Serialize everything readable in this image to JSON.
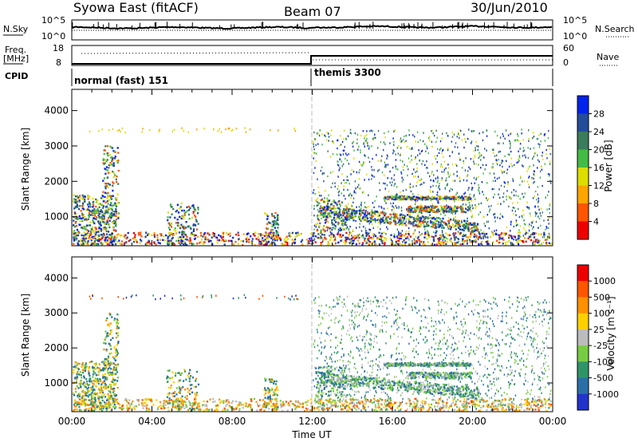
{
  "header": {
    "station": "Syowa East (fitACF)",
    "beam": "Beam 07",
    "date": "30/Jun/2010"
  },
  "strips": {
    "nsky_label": "N.Sky",
    "nsky_ticks": [
      "10^5",
      "10^0"
    ],
    "nsearch_label": "N.Search",
    "nsearch_ticks": [
      "10^5",
      "10^0"
    ],
    "freq_label": "Freq.",
    "freq_unit": "[MHz]",
    "freq_ticks": [
      "18",
      "8"
    ],
    "nave_label": "Nave",
    "nave_ticks": [
      "60",
      "0"
    ],
    "cpid_label": "CPID",
    "cpid_segments": [
      "normal (fast) 151",
      "themis 3300"
    ]
  },
  "colors": {
    "power_scale": [
      "#0022ee",
      "#234d9b",
      "#3a7c5c",
      "#44bb44",
      "#dddd00",
      "#ffa500",
      "#ff5500",
      "#ee0000"
    ],
    "velocity_scale": [
      "#2233cc",
      "#2b6fa8",
      "#2f9566",
      "#77cc44",
      "#bcbcbc",
      "#ffd000",
      "#ff9000",
      "#ff5500",
      "#ee0000"
    ]
  },
  "chart_data": [
    {
      "type": "heatmap",
      "panel": "power",
      "ylabel": "Slant Range [km]",
      "ylim": [
        180,
        4600
      ],
      "yticks": [
        "4000",
        "3000",
        "2000",
        "1000"
      ],
      "xlim": [
        "00:00",
        "24:00"
      ],
      "colorbar_label": "Power [dB]",
      "colorbar_ticks": [
        "28",
        "24",
        "20",
        "16",
        "12",
        "8",
        "4"
      ],
      "colorbar_range": [
        0,
        32
      ]
    },
    {
      "type": "heatmap",
      "panel": "velocity",
      "ylabel": "Slant Range [km]",
      "ylim": [
        180,
        4600
      ],
      "yticks": [
        "4000",
        "3000",
        "2000",
        "1000"
      ],
      "xlabel": "Time UT",
      "xticks": [
        "00:00",
        "04:00",
        "08:00",
        "12:00",
        "16:00",
        "20:00",
        "00:00"
      ],
      "colorbar_label": "Velocity [m s⁻¹]",
      "colorbar_ticks": [
        "1000",
        "500",
        "100",
        "25",
        "-25",
        "-100",
        "-500",
        "-1000"
      ]
    }
  ]
}
